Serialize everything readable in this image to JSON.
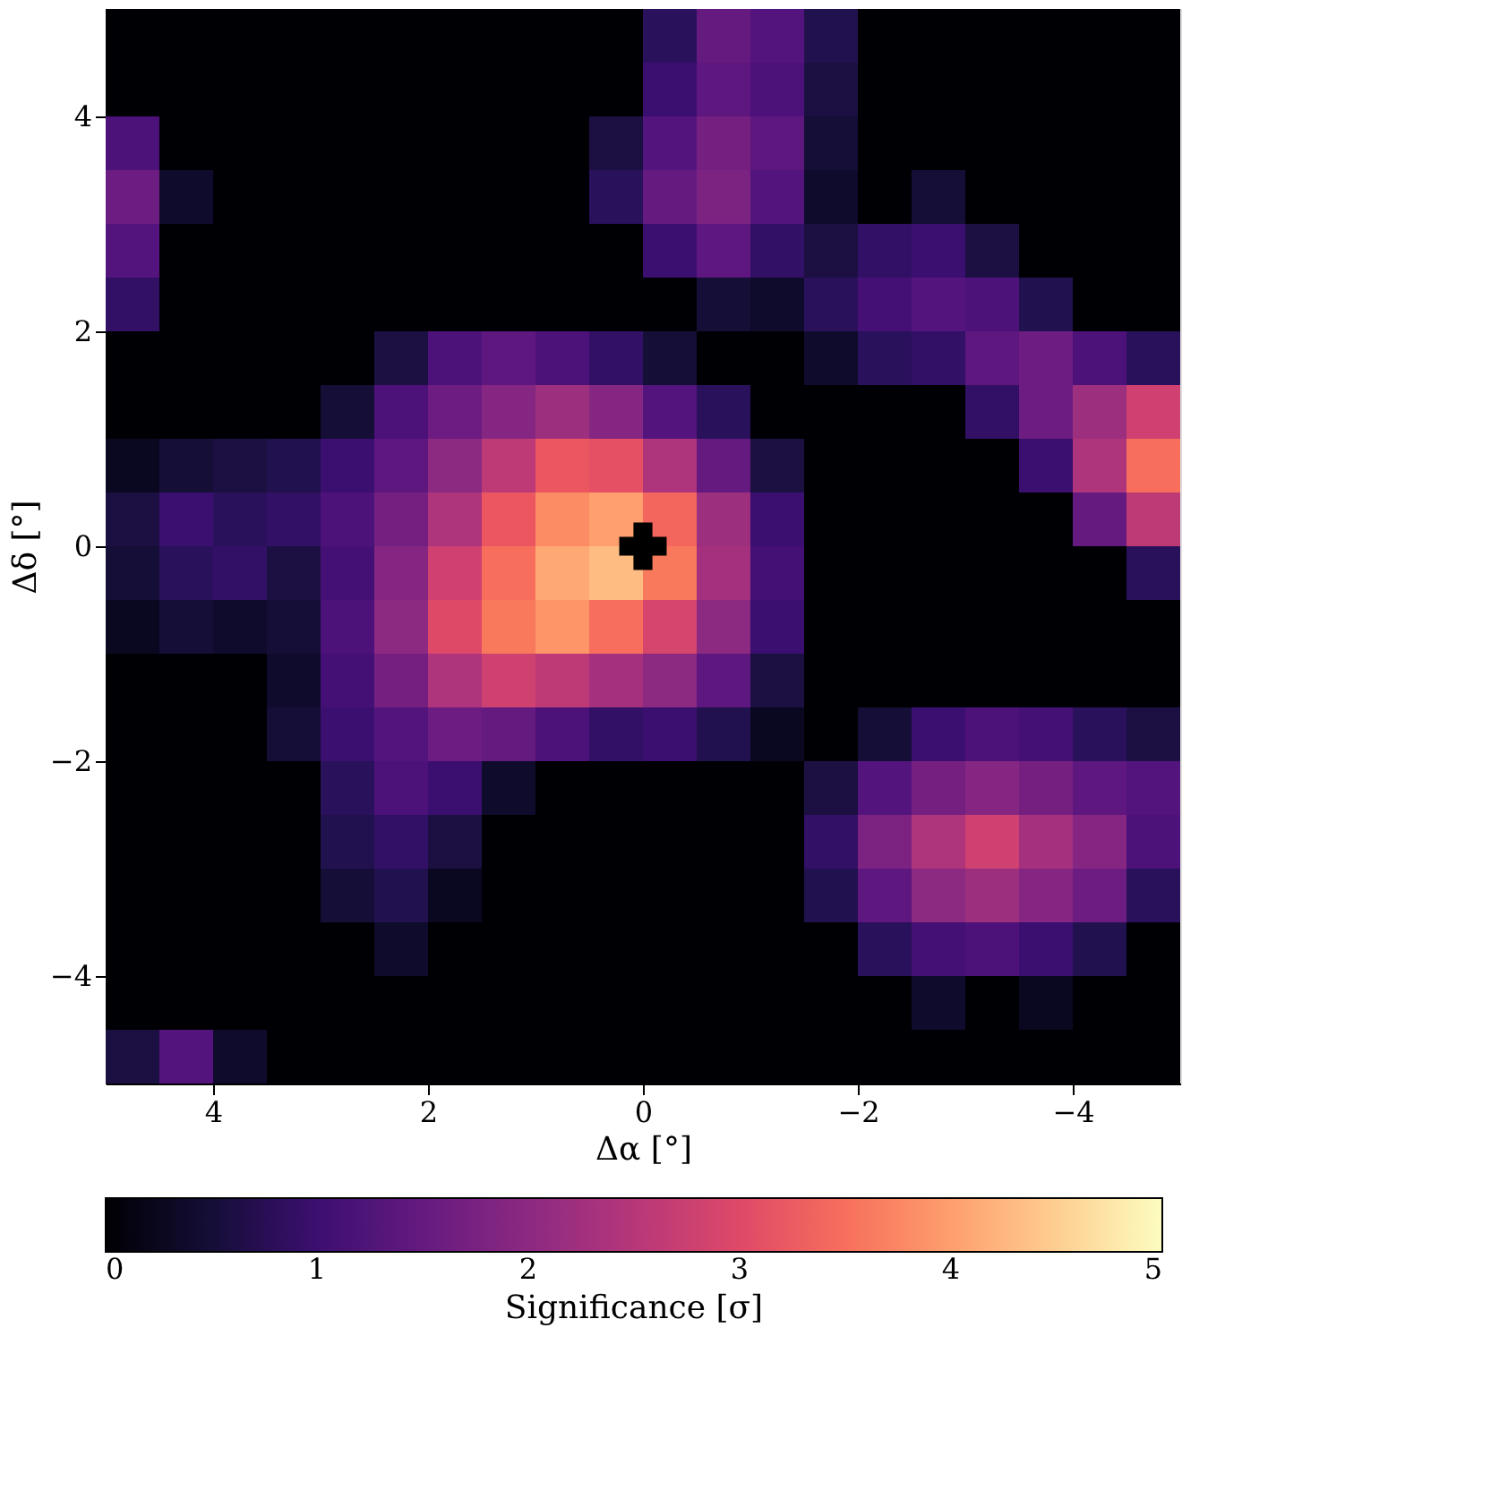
{
  "chart_data": {
    "type": "heatmap",
    "xlabel": "Δα [°]",
    "ylabel": "Δδ [°]",
    "clabel": "Significance [σ]",
    "xlim": [
      5,
      -5
    ],
    "xticks": [
      4,
      2,
      0,
      -2,
      -4
    ],
    "ylim": [
      -5,
      5
    ],
    "yticks": [
      -4,
      -2,
      0,
      2,
      4
    ],
    "clim": [
      0,
      5
    ],
    "cticks": [
      0,
      1,
      2,
      3,
      4,
      5
    ],
    "x": [
      4.75,
      4.25,
      3.75,
      3.25,
      2.75,
      2.25,
      1.75,
      1.25,
      0.75,
      0.25,
      -0.25,
      -0.75,
      -1.25,
      -1.75,
      -2.25,
      -2.75,
      -3.25,
      -3.75,
      -4.25,
      -4.75
    ],
    "y": [
      4.75,
      4.25,
      3.75,
      3.25,
      2.75,
      2.25,
      1.75,
      1.25,
      0.75,
      0.25,
      -0.25,
      -0.75,
      -1.25,
      -1.75,
      -2.25,
      -2.75,
      -3.25,
      -3.75,
      -4.25,
      -4.75
    ],
    "cells": [
      [
        0,
        0,
        0,
        0,
        0,
        0,
        0,
        0,
        0,
        0,
        0.8,
        1.5,
        1.3,
        0.7,
        0,
        0,
        0,
        0,
        0,
        0
      ],
      [
        0,
        0,
        0,
        0,
        0,
        0,
        0,
        0,
        0,
        0,
        1.0,
        1.4,
        1.2,
        0.6,
        0,
        0,
        0,
        0,
        0,
        0
      ],
      [
        1.2,
        0,
        0,
        0,
        0,
        0,
        0,
        0,
        0,
        0.6,
        1.3,
        1.7,
        1.4,
        0.5,
        0,
        0,
        0,
        0,
        0,
        0
      ],
      [
        1.6,
        0.4,
        0,
        0,
        0,
        0,
        0,
        0,
        0,
        0.8,
        1.5,
        1.8,
        1.3,
        0.4,
        0,
        0.5,
        0,
        0,
        0,
        0
      ],
      [
        1.3,
        0,
        0,
        0,
        0,
        0,
        0,
        0,
        0,
        0,
        1.0,
        1.4,
        0.9,
        0.6,
        0.9,
        1.0,
        0.6,
        0,
        0,
        0
      ],
      [
        0.9,
        0,
        0,
        0,
        0,
        0,
        0,
        0,
        0,
        0,
        0,
        0.5,
        0.4,
        0.8,
        1.1,
        1.3,
        1.2,
        0.7,
        0,
        0
      ],
      [
        0,
        0,
        0,
        0,
        0,
        0.6,
        1.2,
        1.4,
        1.2,
        0.9,
        0.5,
        0,
        0,
        0.4,
        0.8,
        0.9,
        1.4,
        1.6,
        1.2,
        0.8
      ],
      [
        0,
        0,
        0,
        0,
        0.5,
        1.2,
        1.6,
        1.9,
        2.2,
        1.9,
        1.3,
        0.8,
        0,
        0,
        0,
        0,
        0.9,
        1.6,
        2.2,
        2.8
      ],
      [
        0.3,
        0.5,
        0.6,
        0.7,
        1.0,
        1.4,
        2.0,
        2.6,
        3.2,
        3.1,
        2.4,
        1.5,
        0.6,
        0,
        0,
        0,
        0,
        1.0,
        2.4,
        3.5
      ],
      [
        0.6,
        1.0,
        0.8,
        0.9,
        1.2,
        1.7,
        2.4,
        3.2,
        3.8,
        4.0,
        3.4,
        2.2,
        1.0,
        0,
        0,
        0,
        0,
        0,
        1.5,
        2.6
      ],
      [
        0.5,
        0.8,
        0.9,
        0.6,
        1.1,
        1.9,
        2.8,
        3.5,
        4.1,
        4.3,
        3.6,
        2.3,
        1.1,
        0,
        0,
        0,
        0,
        0,
        0,
        0.8
      ],
      [
        0.3,
        0.5,
        0.4,
        0.5,
        1.2,
        2.0,
        3.0,
        3.6,
        3.9,
        3.5,
        2.9,
        2.0,
        1.0,
        0,
        0,
        0,
        0,
        0,
        0,
        0
      ],
      [
        0,
        0,
        0,
        0.4,
        1.1,
        1.7,
        2.4,
        2.8,
        2.6,
        2.3,
        2.0,
        1.4,
        0.6,
        0,
        0,
        0,
        0,
        0,
        0,
        0
      ],
      [
        0,
        0,
        0,
        0.5,
        1.0,
        1.3,
        1.6,
        1.5,
        1.2,
        0.9,
        1.0,
        0.7,
        0.3,
        0,
        0.5,
        1.0,
        1.2,
        1.1,
        0.8,
        0.6
      ],
      [
        0,
        0,
        0,
        0,
        0.8,
        1.2,
        1.0,
        0.4,
        0,
        0,
        0,
        0,
        0,
        0.6,
        1.3,
        1.7,
        1.9,
        1.7,
        1.4,
        1.3
      ],
      [
        0,
        0,
        0,
        0,
        0.7,
        0.9,
        0.6,
        0,
        0,
        0,
        0,
        0,
        0,
        0.9,
        1.8,
        2.4,
        2.8,
        2.3,
        1.9,
        1.2
      ],
      [
        0,
        0,
        0,
        0,
        0.5,
        0.7,
        0.3,
        0,
        0,
        0,
        0,
        0,
        0,
        0.7,
        1.4,
        2.0,
        2.2,
        1.9,
        1.6,
        0.8
      ],
      [
        0,
        0,
        0,
        0,
        0,
        0.4,
        0,
        0,
        0,
        0,
        0,
        0,
        0,
        0,
        0.8,
        1.1,
        1.2,
        1.0,
        0.7,
        0
      ],
      [
        0,
        0,
        0,
        0,
        0,
        0,
        0,
        0,
        0,
        0,
        0,
        0,
        0,
        0,
        0,
        0.4,
        0,
        0.3,
        0,
        0
      ],
      [
        0.6,
        1.3,
        0.4,
        0,
        0,
        0,
        0,
        0,
        0,
        0,
        0,
        0,
        0,
        0,
        0,
        0,
        0,
        0,
        0,
        0
      ]
    ],
    "series": [
      {
        "type": "scatter",
        "x": [
          0
        ],
        "values": [
          0
        ],
        "color": "#000000",
        "marker": "cross"
      }
    ]
  }
}
